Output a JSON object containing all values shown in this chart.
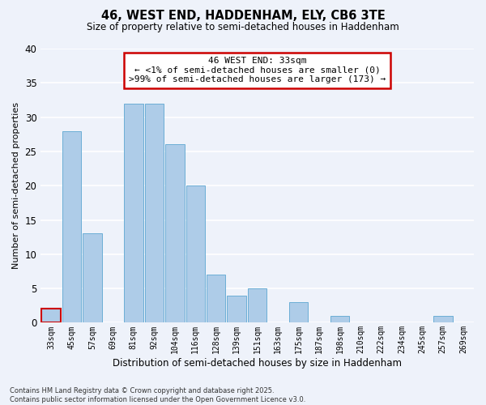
{
  "title": "46, WEST END, HADDENHAM, ELY, CB6 3TE",
  "subtitle": "Size of property relative to semi-detached houses in Haddenham",
  "xlabel": "Distribution of semi-detached houses by size in Haddenham",
  "ylabel": "Number of semi-detached properties",
  "bar_color": "#aecce8",
  "bar_edge_color": "#6baed6",
  "highlight_color": "#cc0000",
  "background_color": "#eef2fa",
  "grid_color": "#ffffff",
  "bins": [
    "33sqm",
    "45sqm",
    "57sqm",
    "69sqm",
    "81sqm",
    "92sqm",
    "104sqm",
    "116sqm",
    "128sqm",
    "139sqm",
    "151sqm",
    "163sqm",
    "175sqm",
    "187sqm",
    "198sqm",
    "210sqm",
    "222sqm",
    "234sqm",
    "245sqm",
    "257sqm",
    "269sqm"
  ],
  "values": [
    2,
    28,
    13,
    0,
    32,
    32,
    26,
    20,
    7,
    4,
    5,
    0,
    3,
    0,
    1,
    0,
    0,
    0,
    0,
    1,
    0
  ],
  "highlight_bin_index": 0,
  "annotation_title": "46 WEST END: 33sqm",
  "annotation_line1": "← <1% of semi-detached houses are smaller (0)",
  "annotation_line2": ">99% of semi-detached houses are larger (173) →",
  "ylim": [
    0,
    40
  ],
  "yticks": [
    0,
    5,
    10,
    15,
    20,
    25,
    30,
    35,
    40
  ],
  "footnote1": "Contains HM Land Registry data © Crown copyright and database right 2025.",
  "footnote2": "Contains public sector information licensed under the Open Government Licence v3.0."
}
